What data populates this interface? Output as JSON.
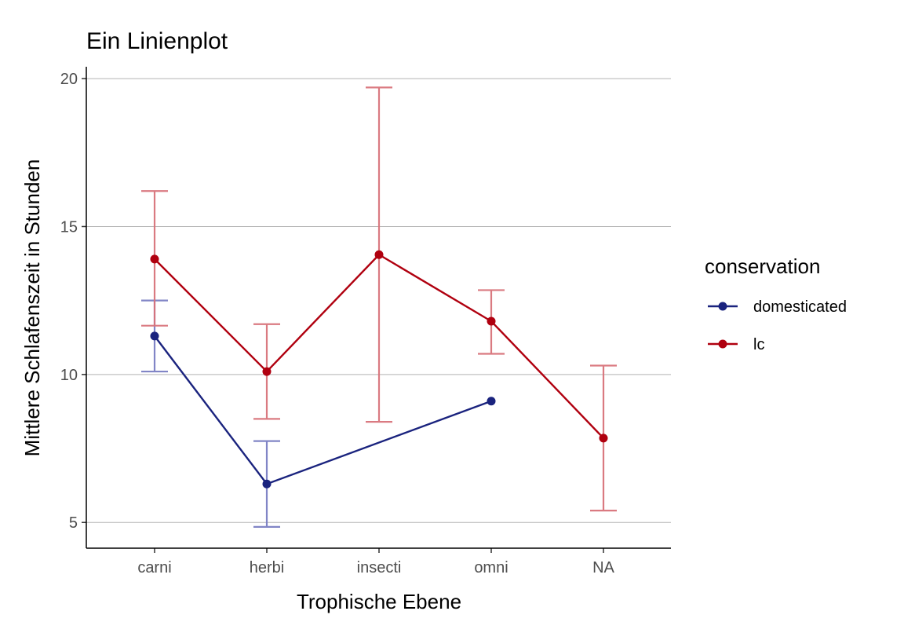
{
  "chart_data": {
    "type": "line",
    "title": "Ein Linienplot",
    "xlabel": "Trophische Ebene",
    "ylabel": "Mittlere Schlafenszeit in Stunden",
    "categories": [
      "carni",
      "herbi",
      "insecti",
      "omni",
      "NA"
    ],
    "ylim": [
      4.13,
      20.4
    ],
    "yticks": [
      5,
      10,
      15,
      20
    ],
    "ytick_labels": [
      "5",
      "10",
      "15",
      "20"
    ],
    "grid": "horizontal major",
    "legend": {
      "title": "conservation",
      "position": "right"
    },
    "series": [
      {
        "name": "domesticated",
        "color": "#1a237e",
        "errorbar_color": "#7b7fc4",
        "points": [
          {
            "x": "carni",
            "y": 11.3,
            "ymin": 10.1,
            "ymax": 12.5
          },
          {
            "x": "herbi",
            "y": 6.3,
            "ymin": 4.85,
            "ymax": 7.75
          },
          {
            "x": "omni",
            "y": 9.1,
            "ymin": null,
            "ymax": null
          }
        ]
      },
      {
        "name": "lc",
        "color": "#b0000f",
        "errorbar_color": "#d9737b",
        "points": [
          {
            "x": "carni",
            "y": 13.9,
            "ymin": 11.65,
            "ymax": 16.2
          },
          {
            "x": "herbi",
            "y": 10.1,
            "ymin": 8.5,
            "ymax": 11.7
          },
          {
            "x": "insecti",
            "y": 14.05,
            "ymin": 8.4,
            "ymax": 19.7
          },
          {
            "x": "omni",
            "y": 11.8,
            "ymin": 10.7,
            "ymax": 12.85
          },
          {
            "x": "NA",
            "y": 7.85,
            "ymin": 5.4,
            "ymax": 10.3
          }
        ]
      }
    ]
  }
}
